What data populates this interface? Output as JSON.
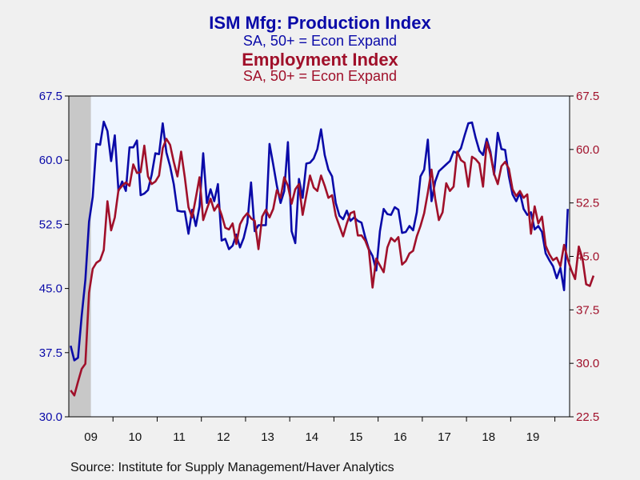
{
  "colors": {
    "production": "#0a0aa8",
    "employment": "#a0102a",
    "plot_bg": "#eef5ff",
    "recession": "#c8c8c8"
  },
  "chart_data": {
    "type": "line",
    "title": "ISM Mfg: Production Index",
    "subtitle": "SA, 50+ = Econ Expand",
    "title2": "Employment Index",
    "subtitle2": "SA, 50+ = Econ Expand",
    "source": "Source:  Institute for Supply Management/Haver Analytics",
    "x_tick_labels": [
      "09",
      "10",
      "11",
      "12",
      "13",
      "14",
      "15",
      "16",
      "17",
      "18",
      "19"
    ],
    "left_axis": {
      "ylim": [
        30.0,
        67.5
      ],
      "ticks": [
        "30.0",
        "37.5",
        "45.0",
        "52.5",
        "60.0",
        "67.5"
      ]
    },
    "right_axis": {
      "ylim": [
        22.5,
        67.5
      ],
      "ticks": [
        "22.5",
        "30.0",
        "37.5",
        "45.0",
        "52.5",
        "60.0",
        "67.5"
      ]
    },
    "recession_shading": {
      "from": "2009-01",
      "to": "2009-06"
    },
    "x_start": "2009-01",
    "series": [
      {
        "name": "ISM Mfg: Production Index",
        "axis": "left",
        "values": [
          38.3,
          36.6,
          36.9,
          41.8,
          46.0,
          52.8,
          55.7,
          61.9,
          61.8,
          64.5,
          63.4,
          59.9,
          62.9,
          56.4,
          57.5,
          56.4,
          61.5,
          61.5,
          62.3,
          55.9,
          56.1,
          56.5,
          58.3,
          60.8,
          60.7,
          64.3,
          60.9,
          59.3,
          57.2,
          54.1,
          54.0,
          54.0,
          51.4,
          54.2,
          52.3,
          54.6,
          60.8,
          55.0,
          56.6,
          55.2,
          57.2,
          50.6,
          50.8,
          49.6,
          50.0,
          51.3,
          49.8,
          50.9,
          52.7,
          57.4,
          51.7,
          52.4,
          52.4,
          52.4,
          61.9,
          59.5,
          57.0,
          55.0,
          56.4,
          62.1,
          51.7,
          50.3,
          57.8,
          55.6,
          59.6,
          59.7,
          60.2,
          61.3,
          63.6,
          60.6,
          58.9,
          58.1,
          55.0,
          53.5,
          53.1,
          54.1,
          52.9,
          53.3,
          52.9,
          52.7,
          51.0,
          49.6,
          48.8,
          47.1,
          51.7,
          54.3,
          53.7,
          53.6,
          54.5,
          54.2,
          51.5,
          51.6,
          52.3,
          51.8,
          53.9,
          58.1,
          58.9,
          62.4,
          55.2,
          57.5,
          58.7,
          59.1,
          59.5,
          59.9,
          61.0,
          60.8,
          61.4,
          62.9,
          64.3,
          64.4,
          62.6,
          61.1,
          60.6,
          62.5,
          61.0,
          58.3,
          63.2,
          61.3,
          61.2,
          58.1,
          56.0,
          55.2,
          56.2,
          54.3,
          53.6,
          53.9,
          51.9,
          52.3,
          51.6,
          49.1,
          48.3,
          47.6,
          46.2,
          47.4,
          44.8,
          54.3
        ]
      },
      {
        "name": "Employment Index",
        "axis": "left",
        "values": [
          33.1,
          32.5,
          34.1,
          35.6,
          36.2,
          44.5,
          47.3,
          48.0,
          48.3,
          49.5,
          55.2,
          51.8,
          53.3,
          56.5,
          57.0,
          57.4,
          57.0,
          59.5,
          58.5,
          58.6,
          61.7,
          58.1,
          57.2,
          57.5,
          58.2,
          61.4,
          62.5,
          61.8,
          59.8,
          58.1,
          61.0,
          58.0,
          54.5,
          53.3,
          55.6,
          58.0,
          53.0,
          54.3,
          55.5,
          54.1,
          54.8,
          53.6,
          52.1,
          51.9,
          52.6,
          50.2,
          52.5,
          53.3,
          53.8,
          53.2,
          52.9,
          49.6,
          53.4,
          54.2,
          53.3,
          54.3,
          56.5,
          55.6,
          58.0,
          57.0,
          54.9,
          56.6,
          57.2,
          53.6,
          55.9,
          58.2,
          56.8,
          56.4,
          58.2,
          57.0,
          55.6,
          55.9,
          53.5,
          52.3,
          51.1,
          52.6,
          53.8,
          54.0,
          51.2,
          51.2,
          50.6,
          49.5,
          45.1,
          48.5,
          47.7,
          46.9,
          49.8,
          50.9,
          50.5,
          51.0,
          47.8,
          48.2,
          49.1,
          49.4,
          51.1,
          52.3,
          53.8,
          56.2,
          58.9,
          55.5,
          53.0,
          53.9,
          57.3,
          56.4,
          56.9,
          61.0,
          60.0,
          59.7,
          56.9,
          60.4,
          60.1,
          59.6,
          56.9,
          62.1,
          60.7,
          58.4,
          57.2,
          59.3,
          59.8,
          59.0,
          56.6,
          55.8,
          56.4,
          55.6,
          56.0,
          51.4,
          54.6,
          52.6,
          53.4,
          50.0,
          49.0,
          48.3,
          48.6,
          47.6,
          50.1,
          48.4,
          47.1,
          46.1,
          49.9,
          48.5,
          45.5,
          45.3,
          46.5
        ]
      }
    ]
  }
}
